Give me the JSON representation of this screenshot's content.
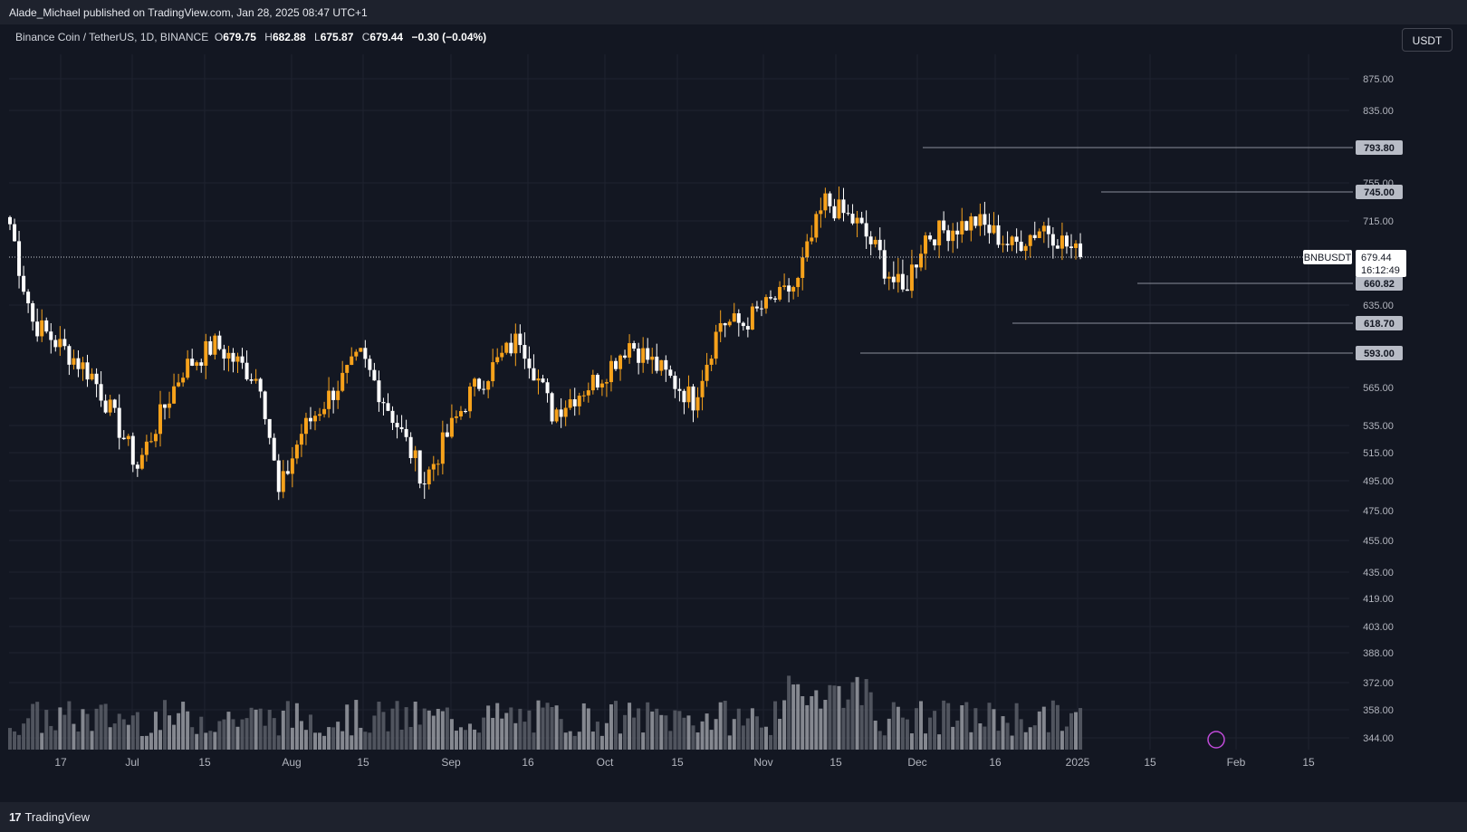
{
  "header": {
    "published": "Alade_Michael published on TradingView.com, Jan 28, 2025 08:47 UTC+1"
  },
  "legend": {
    "symbol": "Binance Coin / TetherUS, 1D, BINANCE",
    "open_label": "O",
    "open": "679.75",
    "high_label": "H",
    "high": "682.88",
    "low_label": "L",
    "low": "675.87",
    "close_label": "C",
    "close": "679.44",
    "change": "−0.30 (−0.04%)"
  },
  "currency_button": "USDT",
  "price_scale": {
    "ticks": [
      "875.00",
      "835.00",
      "755.00",
      "715.00",
      "635.00",
      "565.00",
      "535.00",
      "515.00",
      "495.00",
      "475.00",
      "455.00",
      "435.00",
      "419.00",
      "403.00",
      "388.00",
      "372.00",
      "358.00",
      "344.00"
    ],
    "tagged_levels": [
      "793.80",
      "745.00",
      "660.82",
      "618.70",
      "593.00"
    ]
  },
  "last_price": {
    "symbol_tag": "BNBUSDT",
    "price": "679.44",
    "countdown": "16:12:49"
  },
  "time_axis": {
    "labels": [
      "17",
      "Jul",
      "15",
      "Aug",
      "15",
      "Sep",
      "16",
      "Oct",
      "15",
      "Nov",
      "15",
      "Dec",
      "16",
      "2025",
      "15",
      "Feb",
      "15"
    ]
  },
  "footer": {
    "brand": "TradingView",
    "logo_glyph": "17"
  },
  "colors": {
    "background": "#131722",
    "bull": "#f7a21b",
    "bear": "#ffffff",
    "level_line": "#8a8e99",
    "tag_bg": "#b8bcc6",
    "grid": "#1f2330"
  },
  "chart_data": {
    "type": "candlestick",
    "symbol": "BNBUSDT",
    "timeframe": "1D",
    "approx_range": {
      "start": "2024-06-07",
      "end": "2025-01-28"
    },
    "key_levels": [
      793.8,
      745.0,
      660.82,
      618.7,
      593.0
    ],
    "last_close": 679.44,
    "ohlc_anchors": [
      {
        "date": "2024-06-07",
        "close": 712
      },
      {
        "date": "2024-06-12",
        "close": 620
      },
      {
        "date": "2024-06-25",
        "close": 575
      },
      {
        "date": "2024-07-05",
        "close": 505
      },
      {
        "date": "2024-07-15",
        "close": 580
      },
      {
        "date": "2024-07-22",
        "close": 600
      },
      {
        "date": "2024-08-01",
        "close": 570
      },
      {
        "date": "2024-08-05",
        "close": 485
      },
      {
        "date": "2024-08-10",
        "close": 530
      },
      {
        "date": "2024-08-23",
        "close": 590
      },
      {
        "date": "2024-09-06",
        "close": 495
      },
      {
        "date": "2024-09-16",
        "close": 560
      },
      {
        "date": "2024-09-27",
        "close": 607
      },
      {
        "date": "2024-10-04",
        "close": 545
      },
      {
        "date": "2024-10-15",
        "close": 575
      },
      {
        "date": "2024-10-21",
        "close": 602
      },
      {
        "date": "2024-11-04",
        "close": 555
      },
      {
        "date": "2024-11-10",
        "close": 620
      },
      {
        "date": "2024-11-15",
        "close": 618
      },
      {
        "date": "2024-11-27",
        "close": 660
      },
      {
        "date": "2024-12-03",
        "close": 735
      },
      {
        "date": "2024-12-10",
        "close": 712
      },
      {
        "date": "2024-12-20",
        "close": 650
      },
      {
        "date": "2024-12-25",
        "close": 700
      },
      {
        "date": "2025-01-05",
        "close": 715
      },
      {
        "date": "2025-01-13",
        "close": 690
      },
      {
        "date": "2025-01-20",
        "close": 710
      },
      {
        "date": "2025-01-28",
        "close": 679.44
      }
    ]
  }
}
